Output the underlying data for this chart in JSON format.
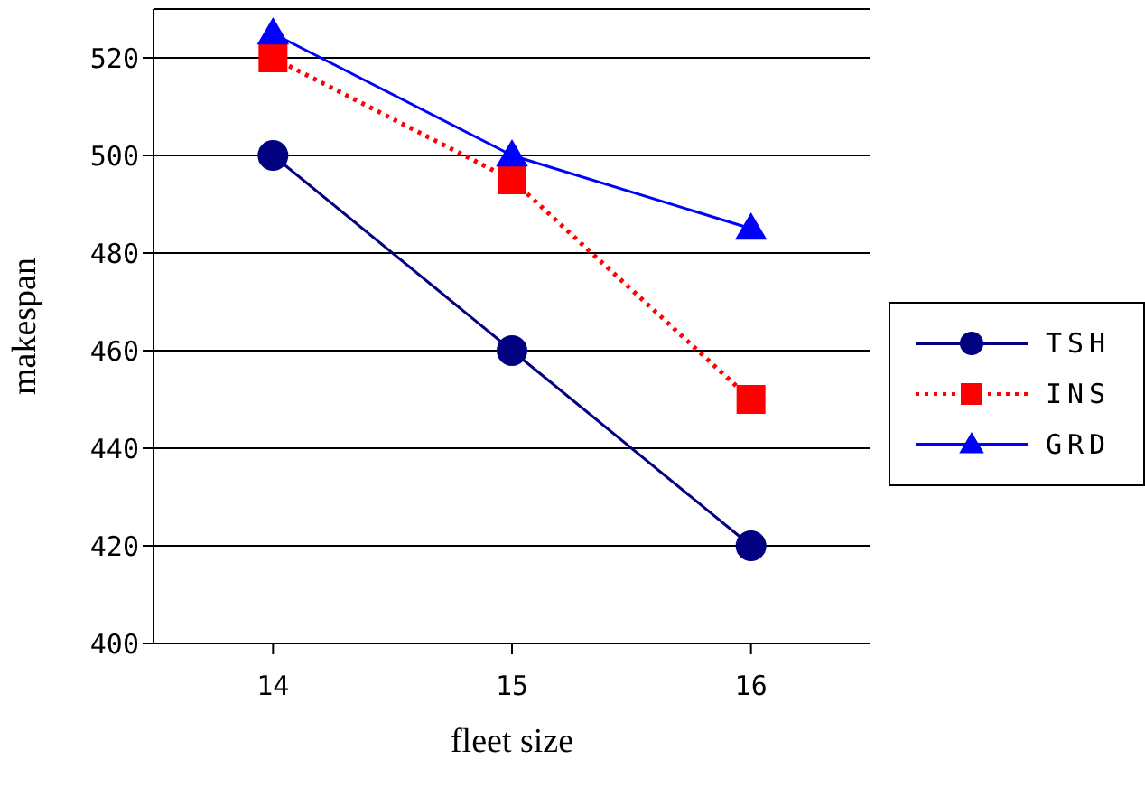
{
  "chart_data": {
    "type": "line",
    "xlabel": "fleet size",
    "ylabel": "makespan",
    "categories": [
      "14",
      "15",
      "16"
    ],
    "ylim": [
      400,
      530
    ],
    "yticks": [
      400,
      420,
      440,
      460,
      480,
      500,
      520
    ],
    "grid": "y",
    "legend": "right",
    "series": [
      {
        "name": "TSH",
        "color": "#000080",
        "values": [
          500,
          460,
          420
        ],
        "marker": "circle",
        "line_style": "solid"
      },
      {
        "name": "INS",
        "color": "#ff0000",
        "values": [
          520,
          495,
          450
        ],
        "marker": "square",
        "line_style": "dotted"
      },
      {
        "name": "GRD",
        "color": "#0000ff",
        "values": [
          525,
          500,
          485
        ],
        "marker": "triangle",
        "line_style": "solid"
      }
    ]
  }
}
